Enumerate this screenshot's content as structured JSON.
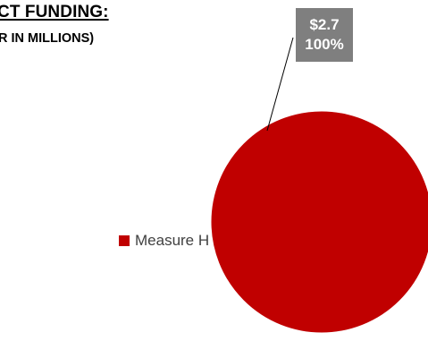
{
  "chart_data": {
    "type": "pie",
    "title": "CT FUNDING:",
    "subtitle": "R IN MILLIONS)",
    "categories": [
      "Measure H"
    ],
    "values": [
      2.7
    ],
    "data_labels": [
      {
        "value_label": "$2.7",
        "percent_label": "100%"
      }
    ],
    "legend": {
      "placement": "left",
      "entries": [
        "Measure H"
      ]
    },
    "colors": {
      "slice": "#c00000",
      "label_box": "#7f7f7f",
      "label_text": "#ffffff",
      "legend_text": "#404040",
      "leader_line": "#000000"
    }
  }
}
